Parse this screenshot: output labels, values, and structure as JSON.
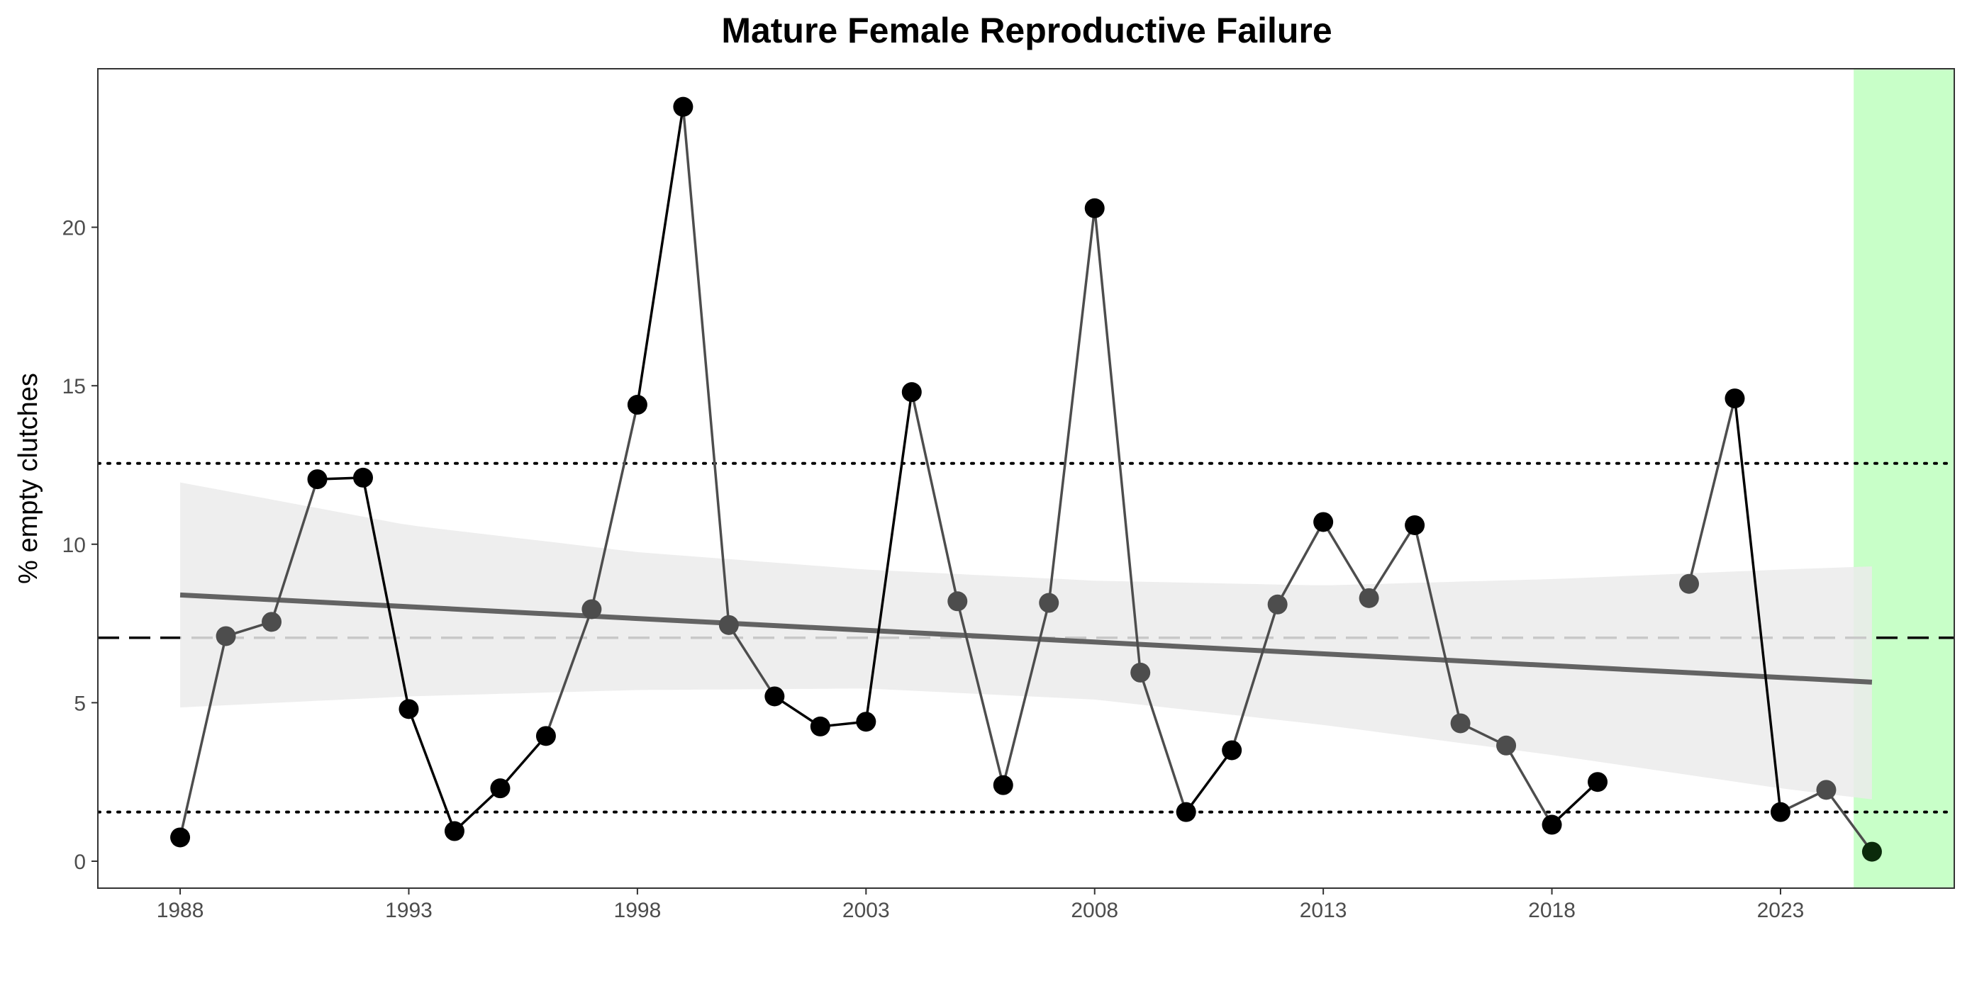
{
  "chart_data": {
    "type": "line",
    "title": "Mature Female Reproductive Failure",
    "xlabel": "",
    "ylabel": "% empty clutches",
    "xlim": [
      1986.2,
      2026.8
    ],
    "ylim": [
      -0.85,
      25.0
    ],
    "x_ticks": [
      1988,
      1993,
      1998,
      2003,
      2008,
      2013,
      2018,
      2023
    ],
    "y_ticks": [
      0,
      5,
      10,
      15,
      20
    ],
    "grid": false,
    "series": [
      {
        "values_by_year": [
          {
            "x": 1988,
            "y": 0.75,
            "shade": "dark"
          },
          {
            "x": 1989,
            "y": 7.1,
            "shade": "gray"
          },
          {
            "x": 1990,
            "y": 7.55,
            "shade": "gray"
          },
          {
            "x": 1991,
            "y": 12.05,
            "shade": "dark"
          },
          {
            "x": 1992,
            "y": 12.1,
            "shade": "dark"
          },
          {
            "x": 1993,
            "y": 4.8,
            "shade": "dark"
          },
          {
            "x": 1994,
            "y": 0.95,
            "shade": "dark"
          },
          {
            "x": 1995,
            "y": 2.3,
            "shade": "dark"
          },
          {
            "x": 1996,
            "y": 3.95,
            "shade": "dark"
          },
          {
            "x": 1997,
            "y": 7.95,
            "shade": "gray"
          },
          {
            "x": 1998,
            "y": 14.4,
            "shade": "dark"
          },
          {
            "x": 1999,
            "y": 23.8,
            "shade": "dark"
          },
          {
            "x": 2000,
            "y": 7.45,
            "shade": "gray"
          },
          {
            "x": 2001,
            "y": 5.2,
            "shade": "dark"
          },
          {
            "x": 2002,
            "y": 4.25,
            "shade": "dark"
          },
          {
            "x": 2003,
            "y": 4.4,
            "shade": "dark"
          },
          {
            "x": 2004,
            "y": 14.8,
            "shade": "dark"
          },
          {
            "x": 2005,
            "y": 8.2,
            "shade": "gray"
          },
          {
            "x": 2006,
            "y": 2.4,
            "shade": "dark"
          },
          {
            "x": 2007,
            "y": 8.15,
            "shade": "gray"
          },
          {
            "x": 2008,
            "y": 20.6,
            "shade": "dark"
          },
          {
            "x": 2009,
            "y": 5.95,
            "shade": "gray"
          },
          {
            "x": 2010,
            "y": 1.55,
            "shade": "dark"
          },
          {
            "x": 2011,
            "y": 3.5,
            "shade": "dark"
          },
          {
            "x": 2012,
            "y": 8.1,
            "shade": "gray"
          },
          {
            "x": 2013,
            "y": 10.7,
            "shade": "dark"
          },
          {
            "x": 2014,
            "y": 8.3,
            "shade": "gray"
          },
          {
            "x": 2015,
            "y": 10.6,
            "shade": "dark"
          },
          {
            "x": 2016,
            "y": 4.35,
            "shade": "gray"
          },
          {
            "x": 2017,
            "y": 3.65,
            "shade": "gray"
          },
          {
            "x": 2018,
            "y": 1.15,
            "shade": "dark"
          },
          {
            "x": 2019,
            "y": 2.5,
            "shade": "dark"
          },
          {
            "x": 2021,
            "y": 8.75,
            "shade": "gray"
          },
          {
            "x": 2022,
            "y": 14.6,
            "shade": "dark"
          },
          {
            "x": 2023,
            "y": 1.55,
            "shade": "dark"
          },
          {
            "x": 2024,
            "y": 2.25,
            "shade": "gray"
          },
          {
            "x": 2025,
            "y": 0.3,
            "shade": "highlight"
          }
        ]
      }
    ],
    "trend_line": {
      "x_start": 1988,
      "y_start": 8.4,
      "x_end": 2025,
      "y_end": 5.65
    },
    "confidence_band": {
      "x": [
        1988,
        1993,
        1998,
        2003,
        2008,
        2013,
        2018,
        2023,
        2025
      ],
      "upper": [
        11.95,
        10.6,
        9.75,
        9.2,
        8.85,
        8.7,
        8.9,
        9.2,
        9.3
      ],
      "lower": [
        4.85,
        5.2,
        5.4,
        5.45,
        5.1,
        4.3,
        3.35,
        2.3,
        1.95
      ]
    },
    "reference_lines": {
      "mean": 7.05,
      "upper_dotted": 12.55,
      "lower_dotted": 1.55
    },
    "highlight_region": {
      "x_start": 2024.6,
      "x_end": 2026.8
    },
    "colors": {
      "dark_point": "#000000",
      "gray_point": "#4d4d4d",
      "highlight_point": "#0b2a0b",
      "trend": "#636363",
      "band": "#ebebeb",
      "highlight_fill": "#c8ffc8",
      "axis_text": "#4d4d4d"
    }
  }
}
